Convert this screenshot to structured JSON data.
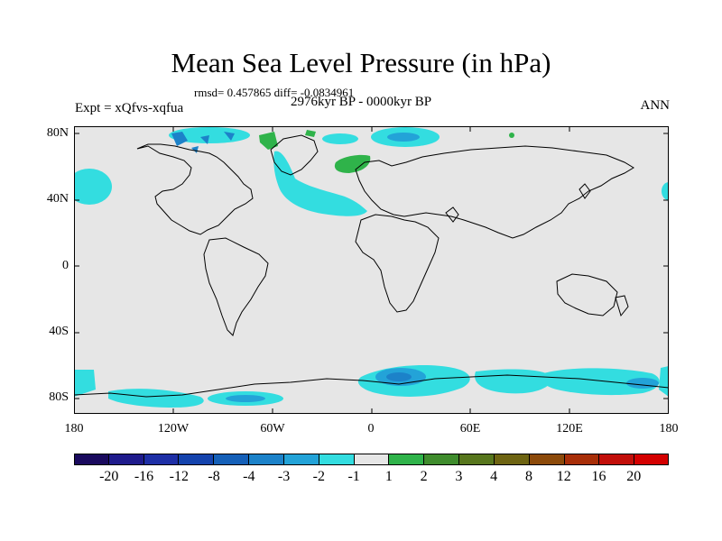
{
  "header": {
    "title": "Mean Sea Level Pressure (in hPa)",
    "stats": "rmsd= 0.457865 diff= -0.0834961",
    "experiment": "Expt = xQfvs-xqfua",
    "period": "2976kyr BP - 0000kyr BP",
    "season": "ANN"
  },
  "axes": {
    "lat_labels": [
      "80N",
      "40N",
      "0",
      "40S",
      "80S"
    ],
    "lon_labels": [
      "180",
      "120W",
      "60W",
      "0",
      "60E",
      "120E",
      "180"
    ]
  },
  "colorbar": {
    "labels": [
      "-20",
      "-16",
      "-12",
      "-8",
      "-4",
      "-3",
      "-2",
      "-1",
      "1",
      "2",
      "3",
      "4",
      "8",
      "12",
      "16",
      "20"
    ],
    "colors": [
      "#1a0a5e",
      "#1f1b8c",
      "#1e2fa6",
      "#1443ad",
      "#1560b8",
      "#1c82c9",
      "#23a3d8",
      "#33dde0",
      "#e6e6e6",
      "#2fb34a",
      "#3f8c2d",
      "#57761d",
      "#6e6412",
      "#8c4a0a",
      "#a82e08",
      "#c20f0a",
      "#d40000"
    ]
  },
  "map": {
    "ocean_color": "#e6e6e6",
    "anomaly_colors": {
      "light_blue": "#33dde0",
      "blue": "#23a3d8",
      "dark_blue": "#1c82c9",
      "green": "#2fb34a"
    }
  }
}
